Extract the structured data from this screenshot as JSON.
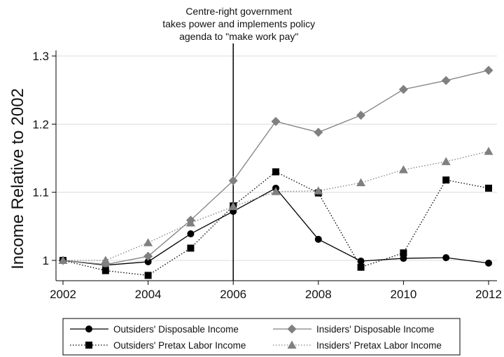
{
  "chart_data": {
    "type": "line",
    "title": "",
    "xlabel": "",
    "ylabel": "Income Relative to 2002",
    "xlim": [
      2002,
      2012
    ],
    "ylim": [
      0.985,
      1.305
    ],
    "x_ticks": [
      2002,
      2004,
      2006,
      2008,
      2010,
      2012
    ],
    "y_ticks": [
      1,
      1.1,
      1.2,
      1.3
    ],
    "y_tick_labels": [
      "1",
      "1.1",
      "1.2",
      "1.3"
    ],
    "grid": "horizontal",
    "legend_position": "bottom",
    "x": [
      2002,
      2003,
      2004,
      2005,
      2006,
      2007,
      2008,
      2009,
      2010,
      2011,
      2012
    ],
    "series": [
      {
        "name": "Outsiders' Disposable Income",
        "marker": "circle",
        "line": "solid",
        "color": "#000000",
        "values": [
          1.0,
          0.993,
          0.998,
          1.039,
          1.072,
          1.106,
          1.031,
          0.999,
          1.003,
          1.004,
          0.996
        ]
      },
      {
        "name": "Insiders' Disposable Income",
        "marker": "diamond",
        "line": "solid",
        "color": "#808080",
        "values": [
          1.0,
          0.994,
          1.006,
          1.059,
          1.117,
          1.204,
          1.188,
          1.213,
          1.251,
          1.264,
          1.279
        ]
      },
      {
        "name": "Outsiders' Pretax Labor Income",
        "marker": "square",
        "line": "dotted",
        "color": "#000000",
        "values": [
          1.0,
          0.985,
          0.978,
          1.018,
          1.08,
          1.13,
          1.099,
          0.99,
          1.011,
          1.118,
          1.106
        ]
      },
      {
        "name": "Insiders' Pretax Labor Income",
        "marker": "triangle",
        "line": "dotted",
        "color": "#808080",
        "values": [
          1.0,
          1.0,
          1.026,
          1.055,
          1.079,
          1.101,
          1.102,
          1.114,
          1.133,
          1.145,
          1.16
        ]
      }
    ],
    "annotations": [
      {
        "x": 2006,
        "type": "vertical-line",
        "color": "#000000",
        "text_lines": [
          "Centre-right government",
          "takes power and implements policy",
          "agenda to \"make work pay\""
        ]
      }
    ]
  }
}
